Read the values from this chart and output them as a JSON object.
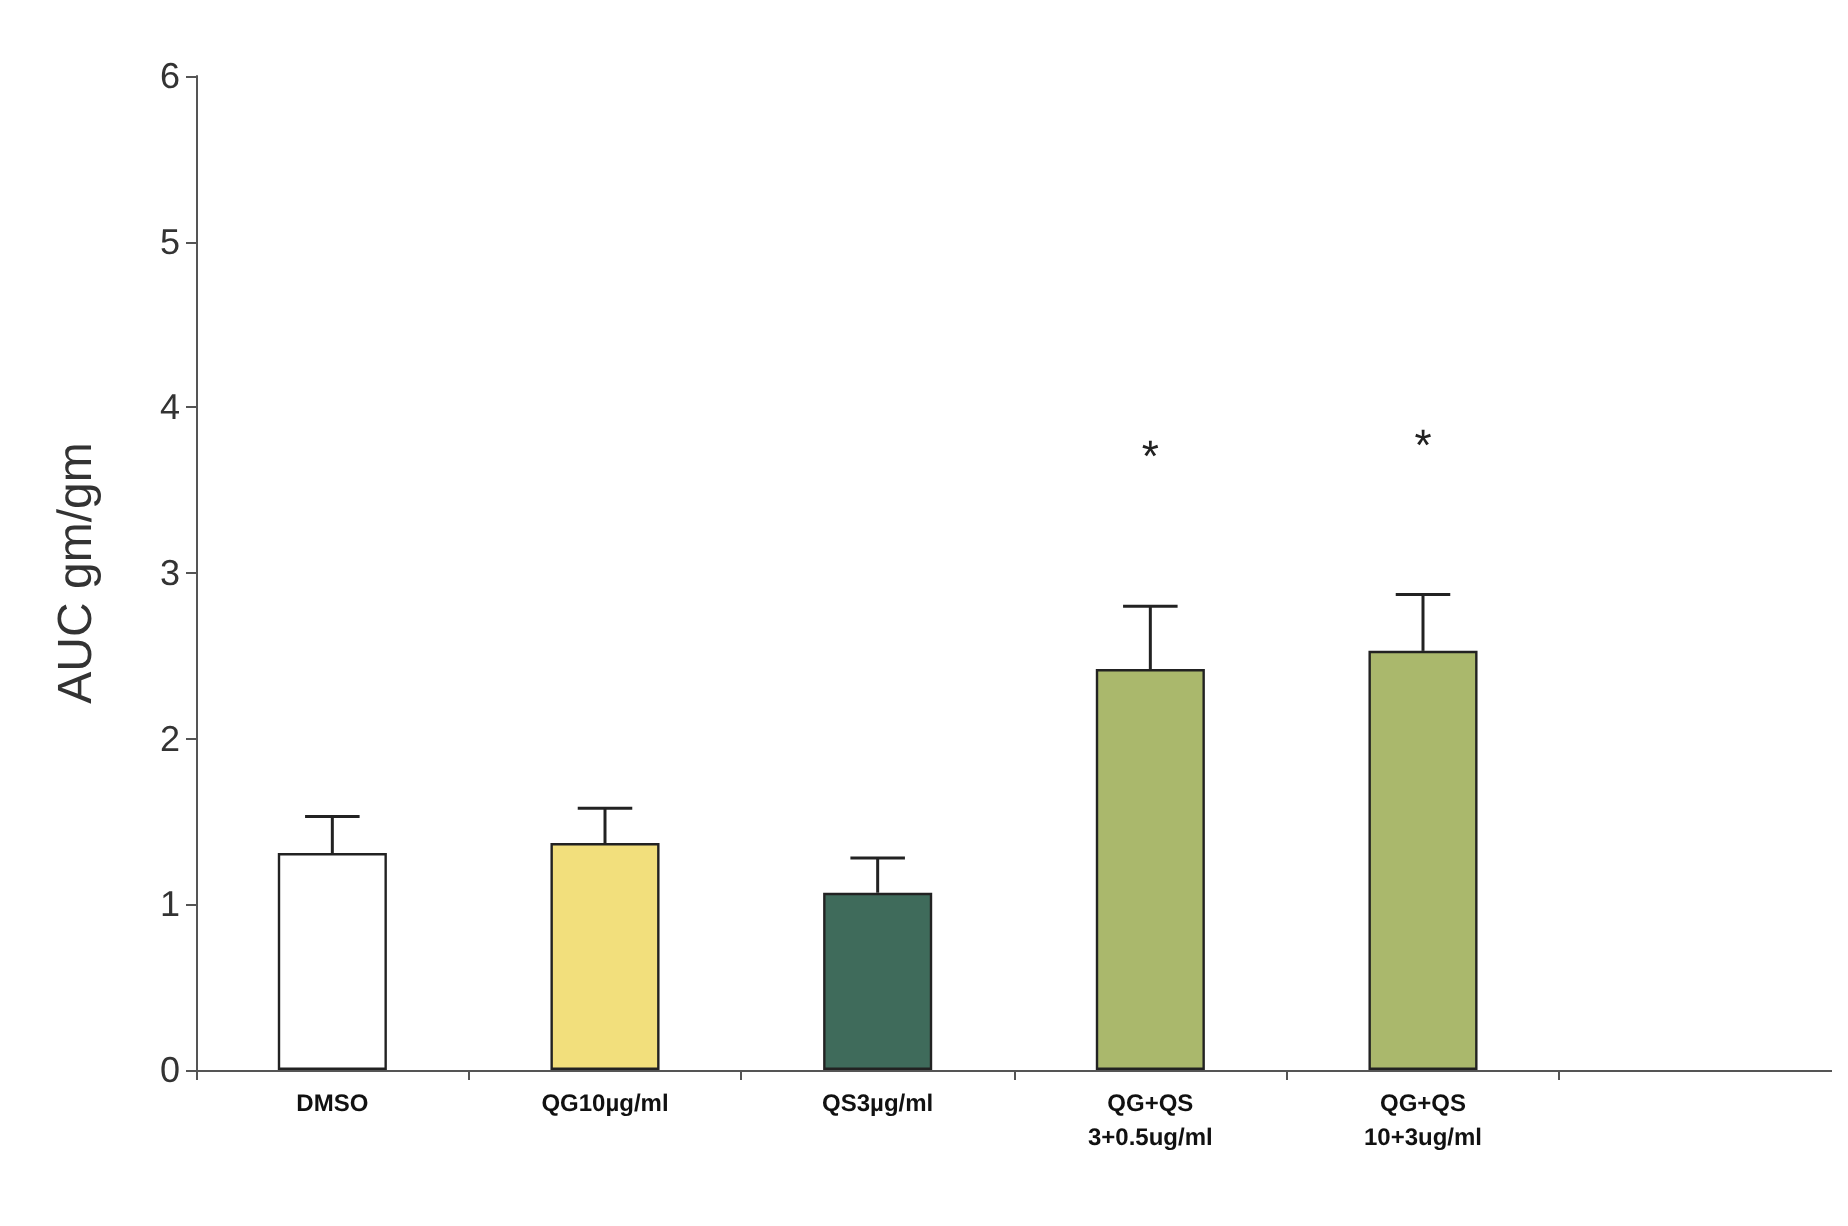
{
  "chart_data": {
    "type": "bar",
    "ylabel": "AUC gm/gm",
    "categories": [
      "DMSO",
      "QG10µg/ml",
      "QS3µg/ml",
      "QG+QS\n3+0.5ug/ml",
      "QG+QS\n10+3ug/ml",
      null
    ],
    "values": [
      1.31,
      1.37,
      1.07,
      2.42,
      2.53,
      null
    ],
    "colors": [
      "#ffffff",
      "#f2df7c",
      "#3f6b5b",
      "#aab86c",
      "#aab86c",
      null
    ],
    "errors": [
      [
        1.31,
        1.53
      ],
      [
        1.37,
        1.58
      ],
      [
        1.07,
        1.28
      ],
      [
        2.42,
        2.8
      ],
      [
        2.53,
        2.87
      ],
      null
    ],
    "ylim": [
      0,
      6
    ],
    "yticks": [
      0,
      1,
      2,
      3,
      4,
      5,
      6
    ],
    "grid": false,
    "annotations": [
      "*",
      "*"
    ]
  }
}
